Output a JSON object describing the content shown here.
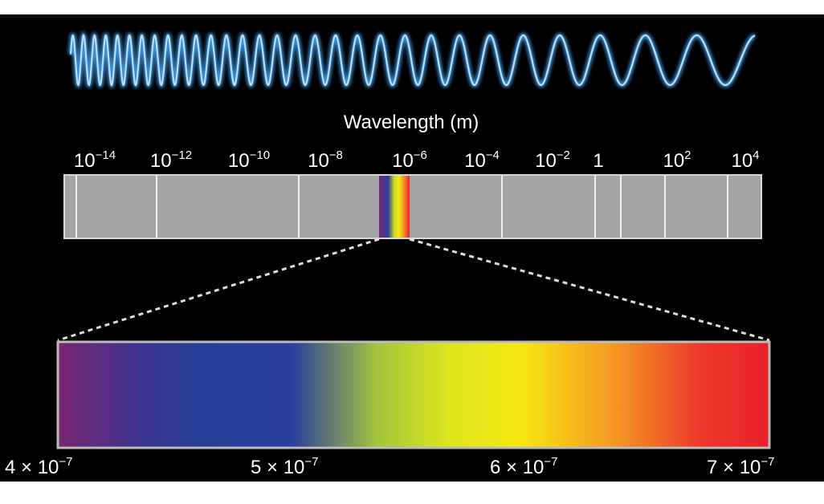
{
  "title": "Wavelength (m)",
  "scale_labels": [
    {
      "base": "10",
      "exp": "−14"
    },
    {
      "base": "10",
      "exp": "−12"
    },
    {
      "base": "10",
      "exp": "−10"
    },
    {
      "base": "10",
      "exp": "−8"
    },
    {
      "base": "10",
      "exp": "−6"
    },
    {
      "base": "10",
      "exp": "−4"
    },
    {
      "base": "10",
      "exp": "−2"
    },
    {
      "base": "1"
    },
    {
      "base": "10",
      "exp": "2"
    },
    {
      "base": "10",
      "exp": "4"
    }
  ],
  "visible_labels": [
    {
      "base": "4 × 10",
      "exp": "−7"
    },
    {
      "base": "5 × 10",
      "exp": "−7"
    },
    {
      "base": "6 × 10",
      "exp": "−7"
    },
    {
      "base": "7 × 10",
      "exp": "−7"
    }
  ]
}
